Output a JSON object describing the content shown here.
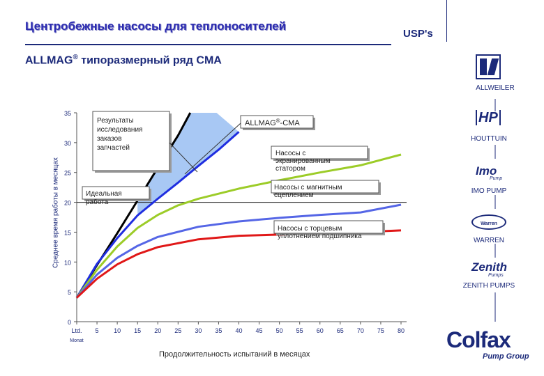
{
  "header": {
    "title": "Центробежные насосы для теплоносителей",
    "usp": "USP's",
    "subtitle": "ALLMAG",
    "subtitle_reg": "®",
    "subtitle_rest": " типоразмерный ряд CMA"
  },
  "chart_data": {
    "type": "line",
    "xlabel": "Продолжительность испытаний в месяцах",
    "ylabel": "Среднее время работы в месяцах",
    "x_ticks": [
      "Ltd.",
      "5",
      "10",
      "15",
      "20",
      "25",
      "30",
      "35",
      "40",
      "45",
      "50",
      "55",
      "60",
      "65",
      "70",
      "75",
      "80"
    ],
    "x_tick_sub": "Monat",
    "y_ticks": [
      "0",
      "5",
      "10",
      "15",
      "20",
      "25",
      "30",
      "35"
    ],
    "ylim": [
      0,
      35
    ],
    "xlim": [
      0,
      80
    ],
    "series": [
      {
        "name": "Идеальная работа",
        "color": "#000000",
        "points": [
          [
            0,
            4
          ],
          [
            5,
            9.5
          ],
          [
            10,
            14.8
          ],
          [
            15,
            20.3
          ],
          [
            20,
            25.8
          ],
          [
            25,
            31.2
          ],
          [
            28,
            35
          ]
        ]
      },
      {
        "name": "ALLMAG®-CMA",
        "color": "#1f2ee0",
        "points": [
          [
            0,
            4
          ],
          [
            5,
            9.7
          ],
          [
            10,
            14
          ],
          [
            15,
            17.8
          ],
          [
            20,
            20.6
          ],
          [
            25,
            23.3
          ],
          [
            30,
            26.1
          ],
          [
            35,
            28.8
          ],
          [
            40,
            31.8
          ]
        ]
      },
      {
        "name": "Насосы с экранированным статором",
        "color": "#9ccc28",
        "points": [
          [
            0,
            4
          ],
          [
            5,
            8.7
          ],
          [
            10,
            12.6
          ],
          [
            15,
            15.7
          ],
          [
            20,
            17.9
          ],
          [
            25,
            19.5
          ],
          [
            30,
            20.6
          ],
          [
            40,
            22.3
          ],
          [
            50,
            23.7
          ],
          [
            60,
            25
          ],
          [
            70,
            26.2
          ],
          [
            80,
            28
          ]
        ]
      },
      {
        "name": "Насосы с магнитным сцеплением",
        "color": "#5566e6",
        "points": [
          [
            0,
            4
          ],
          [
            5,
            7.9
          ],
          [
            10,
            10.7
          ],
          [
            15,
            12.7
          ],
          [
            20,
            14.2
          ],
          [
            30,
            15.9
          ],
          [
            40,
            16.8
          ],
          [
            50,
            17.4
          ],
          [
            60,
            17.9
          ],
          [
            70,
            18.3
          ],
          [
            80,
            19.6
          ]
        ]
      },
      {
        "name": "Насосы с торцевым уплотнением подшипника",
        "color": "#e01818",
        "points": [
          [
            0,
            4
          ],
          [
            5,
            7.2
          ],
          [
            10,
            9.6
          ],
          [
            15,
            11.3
          ],
          [
            20,
            12.5
          ],
          [
            30,
            13.8
          ],
          [
            40,
            14.4
          ],
          [
            50,
            14.6
          ],
          [
            60,
            14.8
          ],
          [
            70,
            15
          ],
          [
            80,
            15.3
          ]
        ]
      }
    ],
    "band_color": "#a8c8f4",
    "reference_line_y": 20,
    "annotations": {
      "parts_study": [
        "Результаты",
        "исследования",
        "заказов",
        "запчастей"
      ],
      "ideal": [
        "Идеальная",
        "работа"
      ],
      "allmag_prefix": "ALLMAG",
      "allmag_reg": "®",
      "allmag_suffix": "-CMA",
      "canned": [
        "Насосы с",
        "экранированным",
        "статором"
      ],
      "magnetic": [
        "Насосы с магнитным",
        "сцеплением"
      ],
      "mech_seal": [
        "Насосы с торцевым",
        "уплотнением подшипника"
      ]
    }
  },
  "brands": {
    "allweiler": "ALLWEILER",
    "houttuin": "HOUTTUIN",
    "imo": "IMO PUMP",
    "imo_logo": "Imo",
    "imo_logo_sub": "Pump",
    "warren": "WARREN",
    "warren_logo": "Warren",
    "zenith": "ZENITH PUMPS",
    "zenith_logo": "Zenith",
    "zenith_logo_sub": "Pumps",
    "colfax": "Colfax",
    "colfax_sub": "Pump Group"
  }
}
